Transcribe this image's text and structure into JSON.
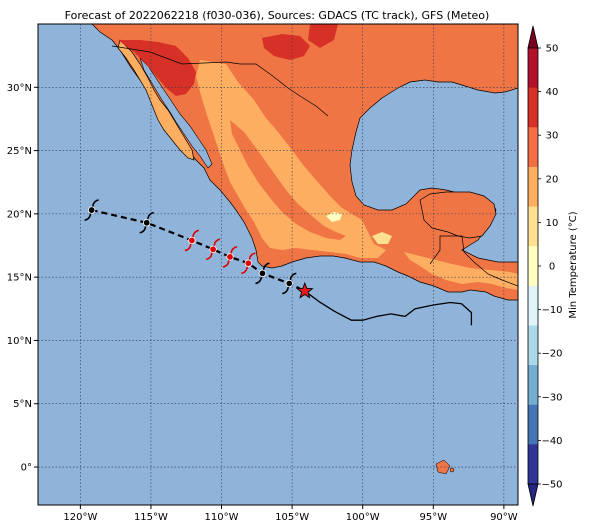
{
  "title": "Forecast of 2022062218 (f030-036), Sources: GDACS (TC track), GFS (Meteo)",
  "map": {
    "x_ticks": [
      "120°W",
      "115°W",
      "110°W",
      "105°W",
      "100°W",
      "95°W",
      "90°W"
    ],
    "y_ticks": [
      "30°N",
      "25°N",
      "20°N",
      "15°N",
      "10°N",
      "5°N",
      "0°"
    ],
    "x_tick_values": [
      -120,
      -115,
      -110,
      -105,
      -100,
      -95,
      -90
    ],
    "y_tick_values": [
      30,
      25,
      20,
      15,
      10,
      5,
      0
    ],
    "lon_range": [
      -123,
      -89
    ],
    "lat_range": [
      -3,
      35
    ],
    "ocean_color": "#8fb3d9",
    "grid": "dotted"
  },
  "colorbar": {
    "label": "Min Temperature (°C)",
    "ticks": [
      "50",
      "40",
      "30",
      "20",
      "10",
      "0",
      "−10",
      "−20",
      "−30",
      "−40",
      "−50"
    ],
    "colors": [
      "#7a0021",
      "#b3102a",
      "#d73027",
      "#f46d43",
      "#fdae61",
      "#fee090",
      "#ffffbf",
      "#e0f3f8",
      "#abd9e9",
      "#74add1",
      "#4575b4",
      "#313695",
      "#262680"
    ]
  },
  "track": {
    "current_position": {
      "lon": -104.1,
      "lat": 13.9
    },
    "forecast_points": [
      {
        "lon": -119.2,
        "lat": 20.3,
        "color": "black"
      },
      {
        "lon": -115.3,
        "lat": 19.3,
        "color": "black"
      },
      {
        "lon": -112.1,
        "lat": 17.9,
        "color": "red"
      },
      {
        "lon": -110.6,
        "lat": 17.2,
        "color": "red"
      },
      {
        "lon": -109.4,
        "lat": 16.6,
        "color": "red"
      },
      {
        "lon": -108.1,
        "lat": 16.1,
        "color": "red"
      },
      {
        "lon": -107.1,
        "lat": 15.3,
        "color": "black"
      },
      {
        "lon": -105.2,
        "lat": 14.5,
        "color": "black"
      }
    ],
    "past_track": [
      [
        -104.1,
        13.9
      ],
      [
        -103.0,
        13.0
      ],
      [
        -102.0,
        12.3
      ],
      [
        -100.8,
        11.6
      ],
      [
        -100.0,
        11.6
      ],
      [
        -99.0,
        11.9
      ],
      [
        -98.0,
        12.1
      ],
      [
        -97.0,
        11.9
      ],
      [
        -96.3,
        12.5
      ],
      [
        -95.0,
        12.8
      ],
      [
        -93.8,
        13.0
      ],
      [
        -93.0,
        12.9
      ],
      [
        -92.3,
        12.2
      ],
      [
        -92.3,
        11.2
      ]
    ]
  }
}
